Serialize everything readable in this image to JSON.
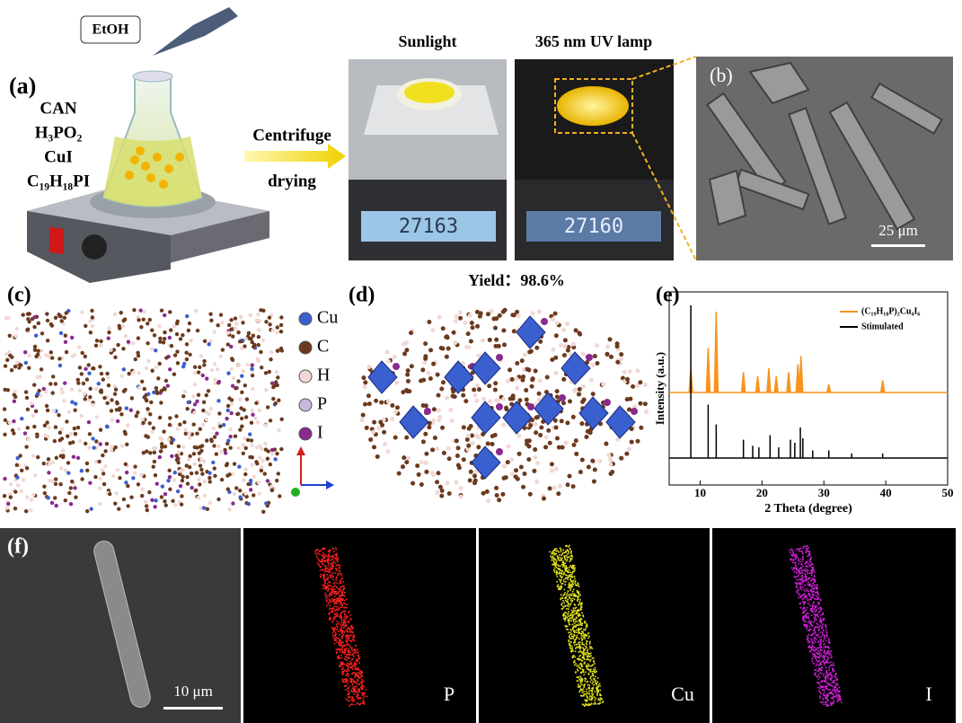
{
  "panel_a": {
    "label": "(a)",
    "solvent": "EtOH",
    "reagents": [
      "CAN",
      "H₃PO₂",
      "CuI",
      "C₁₉H₁₈PI"
    ],
    "step_top": "Centrifuge",
    "step_bottom": "drying",
    "photo_titles": [
      "Sunlight",
      "365 nm UV lamp"
    ],
    "balance_readings": [
      "27163",
      "27160"
    ],
    "yield": "Yield：98.6%"
  },
  "panel_b": {
    "label": "(b)",
    "scale_bar": "25 μm"
  },
  "panel_c": {
    "label": "(c)",
    "legend": [
      {
        "name": "Cu",
        "color": "#3a5fcf"
      },
      {
        "name": "C",
        "color": "#6b3a1e"
      },
      {
        "name": "H",
        "color": "#f0d8d4"
      },
      {
        "name": "P",
        "color": "#c8b8dc"
      },
      {
        "name": "I",
        "color": "#8a2a8f"
      }
    ]
  },
  "panel_d": {
    "label": "(d)"
  },
  "panel_e": {
    "label": "(e)",
    "x_label": "2 Theta (degree)",
    "y_label": "Intensity (a.u.)",
    "xlim": [
      5,
      50
    ],
    "xticks": [
      10,
      20,
      30,
      40,
      50
    ],
    "series": [
      {
        "name": "(C₁₉H₁₈P)₂Cu₄I₆",
        "color": "#f7931e",
        "x": [
          8.5,
          11.3,
          12.6,
          17.0,
          19.3,
          21.1,
          22.3,
          24.3,
          25.8,
          26.3,
          30.8,
          39.5
        ],
        "values": [
          0.28,
          0.55,
          1.0,
          0.25,
          0.2,
          0.3,
          0.2,
          0.25,
          0.35,
          0.45,
          0.1,
          0.15
        ]
      },
      {
        "name": "Stimulated",
        "color": "#000000",
        "x": [
          8.5,
          11.3,
          12.6,
          17.0,
          18.5,
          19.5,
          21.3,
          22.7,
          24.6,
          25.3,
          26.2,
          26.6,
          28.2,
          30.8,
          34.5,
          39.5
        ],
        "values": [
          1.0,
          0.35,
          0.22,
          0.12,
          0.08,
          0.07,
          0.15,
          0.07,
          0.12,
          0.1,
          0.2,
          0.13,
          0.05,
          0.05,
          0.03,
          0.03
        ]
      }
    ]
  },
  "panel_f": {
    "label": "(f)",
    "scale_bar": "10 μm",
    "maps": [
      {
        "element": "P",
        "color": "#ff2020"
      },
      {
        "element": "Cu",
        "color": "#e8e820"
      },
      {
        "element": "I",
        "color": "#d020d8"
      }
    ]
  }
}
